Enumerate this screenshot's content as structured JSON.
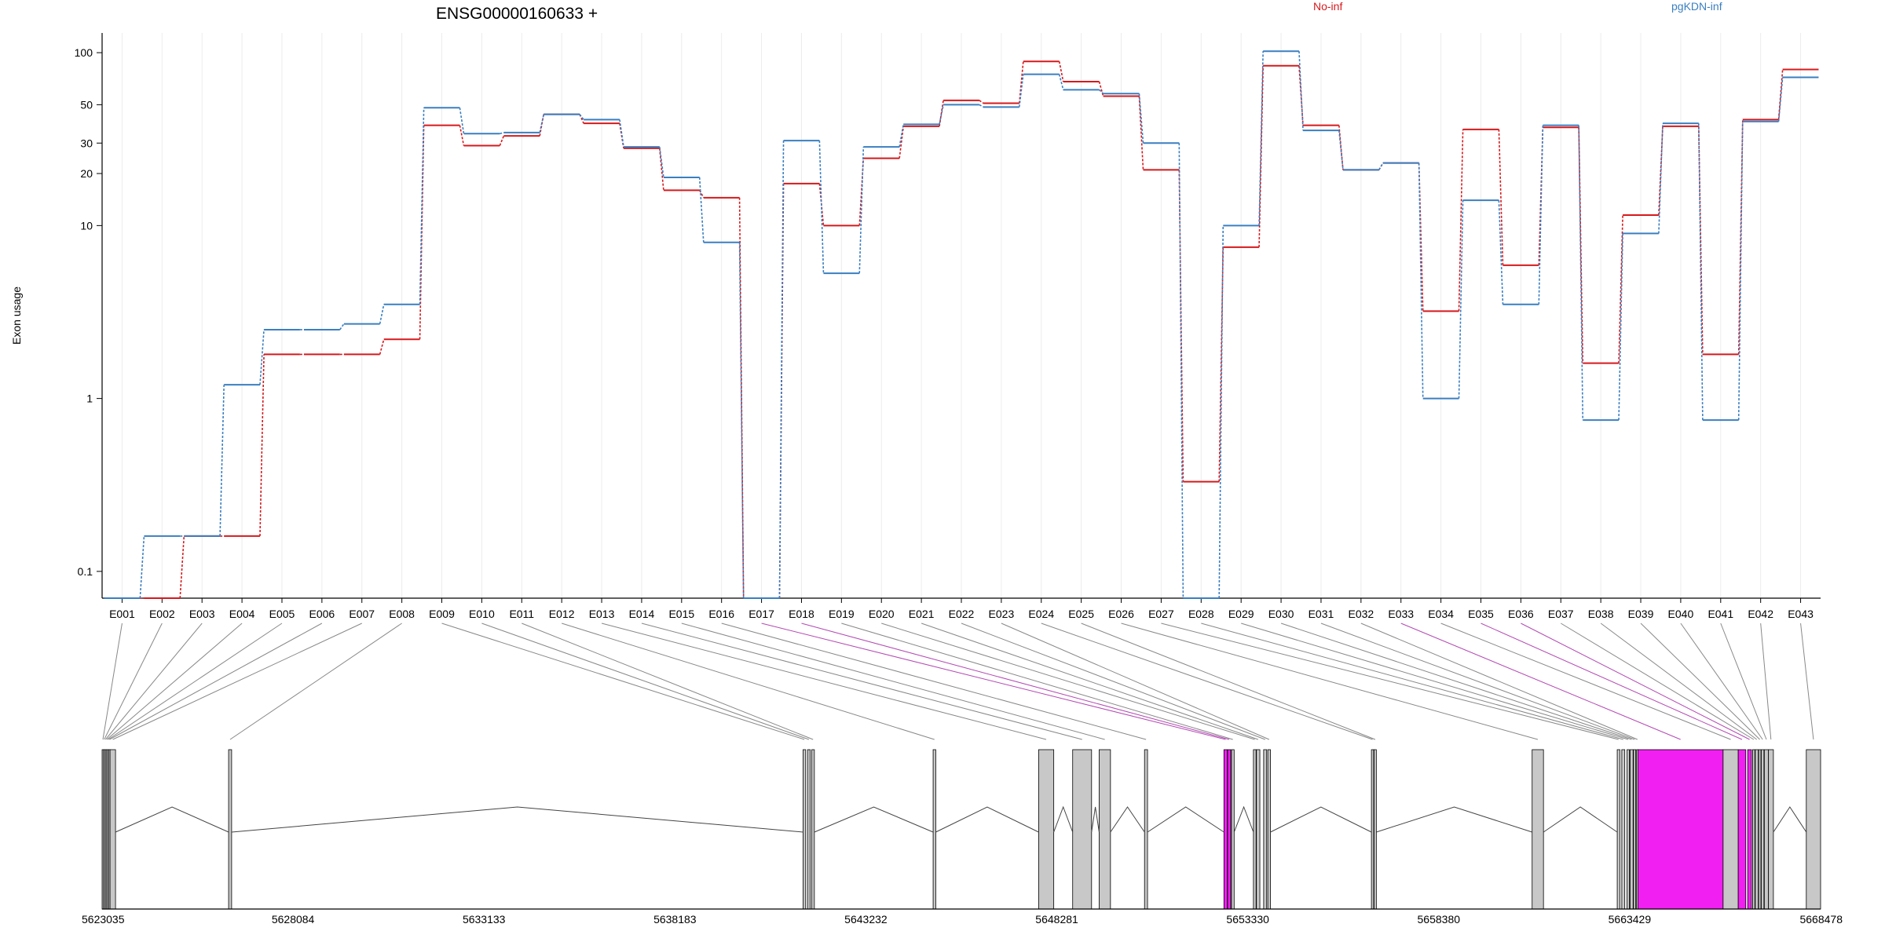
{
  "chart_data": {
    "type": "line",
    "title": "ENSG00000160633 +",
    "ylabel": "Exon usage",
    "xlabel": "",
    "yscale": "log",
    "ylim": [
      0.07,
      130
    ],
    "yticks": [
      0.1,
      1,
      10,
      20,
      30,
      50,
      100
    ],
    "ytick_labels": [
      "0.1",
      "1",
      "10",
      "20",
      "30",
      "50",
      "100"
    ],
    "grid": "vertical",
    "legend_position": "top",
    "categories": [
      "E001",
      "E002",
      "E003",
      "E004",
      "E005",
      "E006",
      "E007",
      "E008",
      "E009",
      "E010",
      "E011",
      "E012",
      "E013",
      "E014",
      "E015",
      "E016",
      "E017",
      "E018",
      "E019",
      "E020",
      "E021",
      "E022",
      "E023",
      "E024",
      "E025",
      "E026",
      "E027",
      "E028",
      "E029",
      "E030",
      "E031",
      "E032",
      "E033",
      "E034",
      "E035",
      "E036",
      "E037",
      "E038",
      "E039",
      "E040",
      "E041",
      "E042",
      "E043"
    ],
    "series": [
      {
        "name": "No-inf",
        "color": "#d7191c",
        "values": [
          0.07,
          0.07,
          0.16,
          0.16,
          1.8,
          1.8,
          1.8,
          2.2,
          38,
          29,
          33,
          44,
          39,
          28,
          16,
          14.5,
          0.07,
          17.5,
          10,
          24.5,
          37.5,
          53,
          51,
          89,
          68,
          56,
          21,
          0.33,
          7.5,
          84,
          38,
          21,
          23,
          3.2,
          36,
          5.9,
          37,
          1.6,
          11.5,
          37.5,
          1.8,
          41,
          80
        ]
      },
      {
        "name": "pgKDN-inf",
        "color": "#3a7fc1",
        "values": [
          0.07,
          0.16,
          0.16,
          1.2,
          2.5,
          2.5,
          2.7,
          3.5,
          48,
          34,
          34.5,
          44,
          41,
          28.5,
          19,
          8,
          0.07,
          31,
          5.3,
          28.5,
          38.5,
          50,
          48.5,
          75,
          61,
          58,
          30,
          0.07,
          10,
          102,
          35.5,
          21,
          23,
          1,
          14,
          3.5,
          38,
          0.75,
          9,
          39,
          0.75,
          40,
          72
        ]
      }
    ]
  },
  "gene_model": {
    "axis_ticks": [
      "5623035",
      "5628084",
      "5633133",
      "5638183",
      "5643232",
      "5648281",
      "5653330",
      "5658380",
      "5663429",
      "5668478"
    ],
    "axis_range": [
      5623035,
      5668478
    ],
    "exon_fill": "#c8c8c8",
    "highlight_fill": "#f21ff2",
    "connector_color": "#888888",
    "highlight_connector_color": "#b44ab4",
    "highlighted_exons": [
      "E017",
      "E018",
      "E033",
      "E035",
      "E036"
    ],
    "exon_coords": [
      [
        5623035,
        5623070
      ],
      [
        5623070,
        5623105
      ],
      [
        5623105,
        5623140
      ],
      [
        5623140,
        5623175
      ],
      [
        5623175,
        5623210
      ],
      [
        5623210,
        5623245
      ],
      [
        5623245,
        5623390
      ],
      [
        5626380,
        5626460
      ],
      [
        5641570,
        5641640
      ],
      [
        5641690,
        5641760
      ],
      [
        5641800,
        5641870
      ],
      [
        5645010,
        5645080
      ],
      [
        5647800,
        5648200
      ],
      [
        5648700,
        5649200
      ],
      [
        5649400,
        5649700
      ],
      [
        5650600,
        5650680
      ],
      [
        5652700,
        5652790
      ],
      [
        5652800,
        5652880
      ],
      [
        5652900,
        5652970
      ],
      [
        5653480,
        5653550
      ],
      [
        5653560,
        5653650
      ],
      [
        5653750,
        5653830
      ],
      [
        5653860,
        5653930
      ],
      [
        5656600,
        5656660
      ],
      [
        5656670,
        5656730
      ],
      [
        5660850,
        5661150
      ],
      [
        5663100,
        5663170
      ],
      [
        5663220,
        5663300
      ],
      [
        5663360,
        5663420
      ],
      [
        5663440,
        5663520
      ],
      [
        5663530,
        5663590
      ],
      [
        5663610,
        5663660
      ],
      [
        5663650,
        5665900
      ],
      [
        5665900,
        5666300
      ],
      [
        5666300,
        5666500
      ],
      [
        5666550,
        5666650
      ],
      [
        5666680,
        5666740
      ],
      [
        5666750,
        5666830
      ],
      [
        5666840,
        5666900
      ],
      [
        5666910,
        5666980
      ],
      [
        5666990,
        5667100
      ],
      [
        5667100,
        5667230
      ],
      [
        5668100,
        5668478
      ]
    ]
  }
}
